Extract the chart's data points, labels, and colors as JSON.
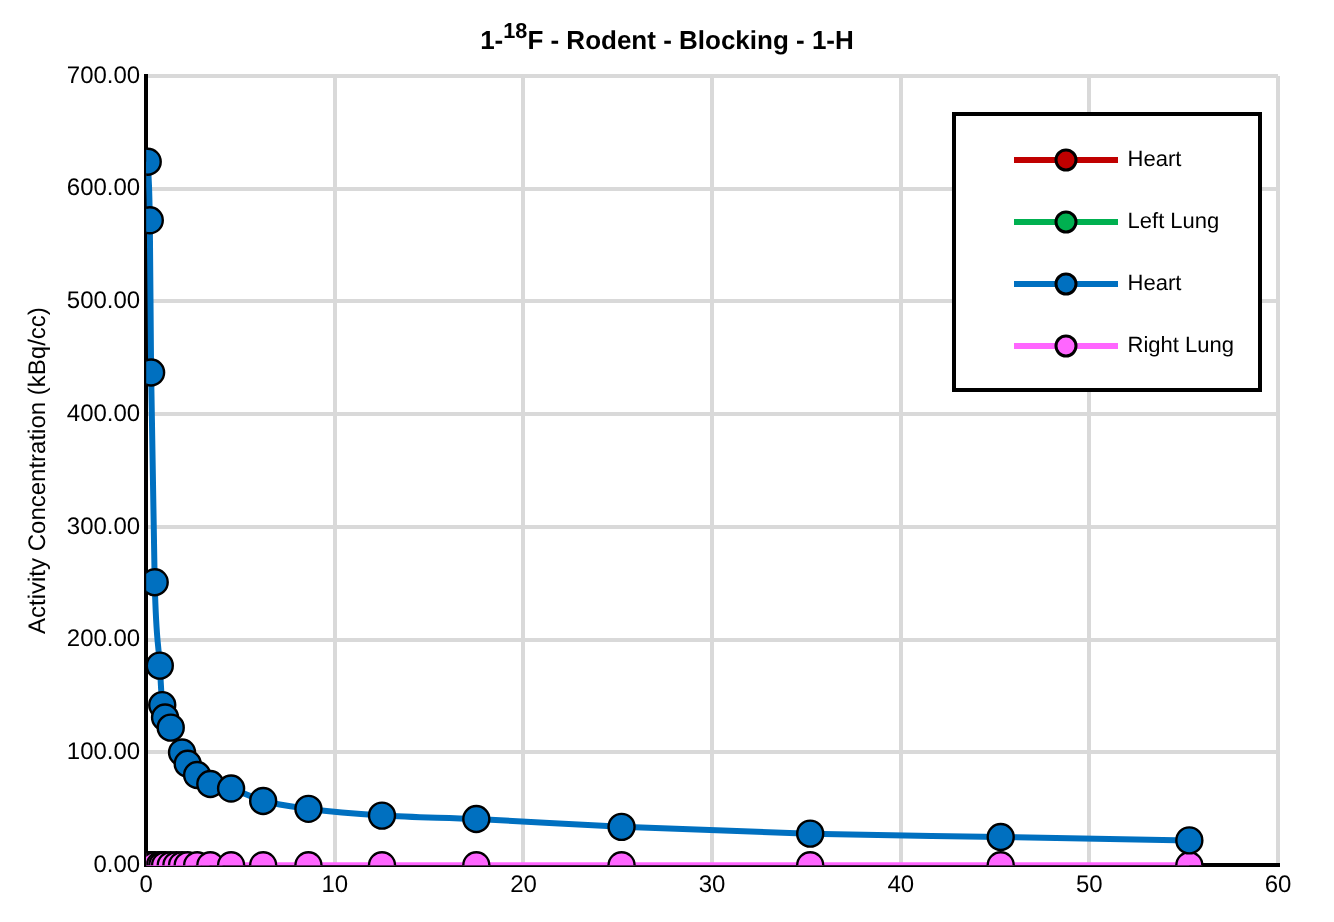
{
  "chart_data": {
    "type": "line",
    "title": "1-$^{18}$F - Rodent - Blocking - 1-H",
    "ylabel": "Activity Concentration (kBq/cc)",
    "x": [
      0.08,
      0.19,
      0.26,
      0.45,
      0.72,
      0.85,
      1.0,
      1.3,
      1.6,
      1.9,
      2.2,
      2.7,
      3.4,
      4.5,
      6.2,
      8.6,
      12.5,
      17.5,
      25.2,
      35.2,
      45.3,
      55.3
    ],
    "series": [
      {
        "name": "Heart",
        "color": "#c00000",
        "values": [
          null,
          null,
          null,
          null,
          null,
          null,
          null,
          null,
          null,
          null,
          null,
          null,
          null,
          null,
          null,
          null,
          null,
          null,
          null,
          null,
          null,
          null
        ]
      },
      {
        "name": "Left Lung",
        "color": "#00b050",
        "values": [
          null,
          null,
          null,
          null,
          null,
          null,
          null,
          null,
          null,
          null,
          null,
          null,
          null,
          null,
          null,
          null,
          null,
          null,
          null,
          null,
          null,
          null
        ]
      },
      {
        "name": "Heart",
        "color": "#0070c0",
        "values": [
          624,
          572,
          437,
          251,
          177,
          142,
          131,
          122,
          null,
          100,
          90,
          80,
          72,
          68,
          57,
          50,
          44,
          41,
          34,
          28,
          25,
          22
        ]
      },
      {
        "name": "Right Lung",
        "color": "#ff66ff",
        "values": [
          0,
          0,
          0,
          0,
          0,
          0,
          0,
          0,
          0,
          0,
          0,
          0,
          0,
          0,
          0,
          0,
          0,
          0,
          0,
          0,
          0,
          0
        ]
      }
    ],
    "xlim": [
      0,
      60
    ],
    "xticks": [
      0,
      10,
      20,
      30,
      40,
      50,
      60
    ],
    "ylim": [
      0,
      700
    ],
    "yticks": [
      {
        "value": 0,
        "label": "0.00"
      },
      {
        "value": 100,
        "label": "100.00"
      },
      {
        "value": 200,
        "label": "200.00"
      },
      {
        "value": 300,
        "label": "300.00"
      },
      {
        "value": 400,
        "label": "400.00"
      },
      {
        "value": 500,
        "label": "500.00"
      },
      {
        "value": 600,
        "label": "600.00"
      },
      {
        "value": 700,
        "label": "700.00"
      }
    ],
    "grid": true,
    "legend": "top right",
    "marker": "circle",
    "line_style": "solid"
  }
}
